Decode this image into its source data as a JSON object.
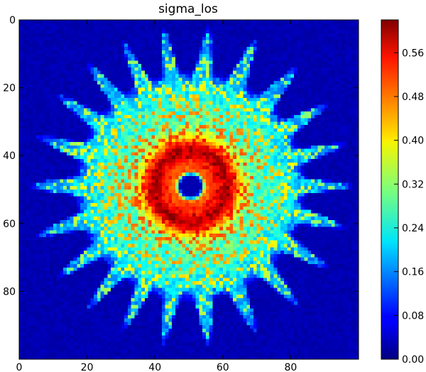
{
  "chart_data": {
    "type": "heatmap",
    "title": "sigma_los",
    "xlabel": "",
    "ylabel": "",
    "xlim": [
      0,
      100
    ],
    "ylim": [
      100,
      0
    ],
    "xticks": [
      0,
      20,
      40,
      60,
      80
    ],
    "yticks": [
      0,
      20,
      40,
      60,
      80
    ],
    "colormap": "jet",
    "colorbar": {
      "min": 0.0,
      "max": 0.62,
      "ticks": [
        "0.00",
        "0.08",
        "0.16",
        "0.24",
        "0.32",
        "0.40",
        "0.48",
        "0.56"
      ]
    },
    "field": {
      "grid": [
        100,
        100
      ],
      "center": [
        50,
        48.5
      ],
      "background_value": 0.02,
      "central_hole_radius": 3,
      "central_hole_value": 0.03,
      "ring_radius": 10.5,
      "ring_peak_value": 0.6,
      "halo_radius": 24,
      "halo_value": 0.24,
      "outer_extent": 48,
      "spike_count": 22,
      "spike_value": 0.1
    }
  }
}
